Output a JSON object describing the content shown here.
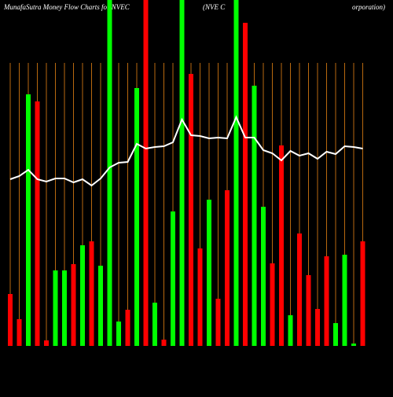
{
  "chart_data": {
    "type": "bar",
    "title_parts": [
      "MunafaSutra  Money Flow  Charts for NVEC",
      "(NVE C",
      "orporation)"
    ],
    "categories": [
      null,
      null,
      null,
      null,
      null,
      null,
      null,
      null,
      null,
      null,
      null,
      null,
      null,
      null,
      null,
      null,
      null,
      null,
      null,
      null,
      null,
      null,
      null,
      null,
      null,
      null,
      null,
      null,
      null,
      null,
      null,
      null,
      null,
      null,
      null,
      null,
      null,
      null,
      null,
      null
    ],
    "series": [
      {
        "values": [
          66,
          34,
          320,
          311,
          7,
          96,
          96,
          104,
          128,
          133,
          102,
          460,
          31,
          46,
          328,
          460,
          55,
          8,
          171,
          460,
          346,
          124,
          186,
          60,
          198,
          460,
          411,
          331,
          177,
          105,
          255,
          39,
          143,
          90,
          47,
          114,
          29,
          116,
          3,
          133
        ],
        "colors": [
          "#ff0000",
          "#ff0000",
          "#00ff00",
          "#ff0000",
          "#ff0000",
          "#00ff00",
          "#00ff00",
          "#ff0000",
          "#00ff00",
          "#ff0000",
          "#00ff00",
          "#00ff00",
          "#00ff00",
          "#ff0000",
          "#00ff00",
          "#ff0000",
          "#00ff00",
          "#ff0000",
          "#00ff00",
          "#00ff00",
          "#ff0000",
          "#ff0000",
          "#00ff00",
          "#ff0000",
          "#ff0000",
          "#00ff00",
          "#ff0000",
          "#00ff00",
          "#00ff00",
          "#ff0000",
          "#ff0000",
          "#00ff00",
          "#ff0000",
          "#ff0000",
          "#ff0000",
          "#ff0000",
          "#00ff00",
          "#00ff00",
          "#00ff00",
          "#ff0000"
        ]
      },
      {
        "type": "line",
        "color": "#ffffff",
        "values": [
          212,
          216,
          224,
          212,
          209,
          213,
          213,
          208,
          212,
          204,
          213,
          227,
          233,
          234,
          257,
          251,
          253,
          254,
          259,
          288,
          268,
          267,
          264,
          265,
          264,
          291,
          265,
          265,
          249,
          245,
          236,
          248,
          242,
          245,
          238,
          247,
          244,
          254,
          253,
          251
        ]
      }
    ],
    "ylim": [
      0,
      440
    ],
    "grid_color": "#b8690f",
    "background": "#000000"
  }
}
